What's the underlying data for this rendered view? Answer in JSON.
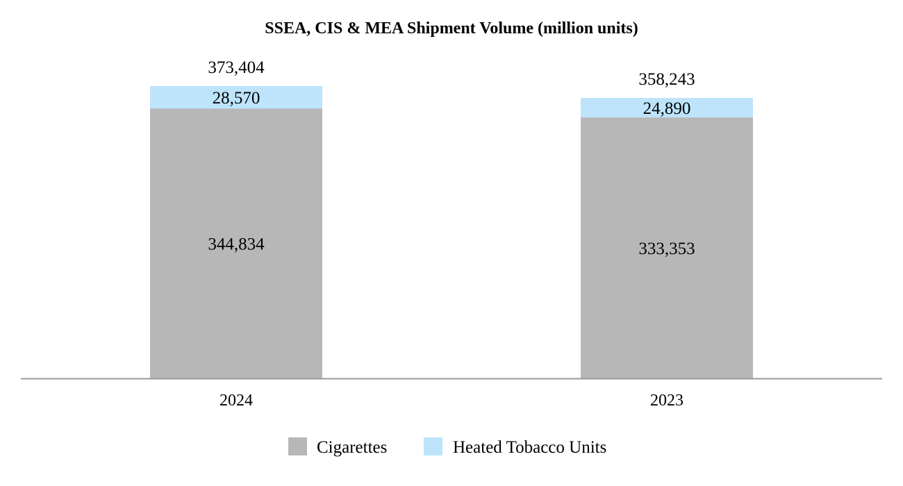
{
  "chart_data": {
    "type": "bar",
    "stacked": true,
    "title": "SSEA, CIS & MEA Shipment Volume (million units)",
    "xlabel": "",
    "ylabel": "",
    "categories": [
      "2024",
      "2023"
    ],
    "series": [
      {
        "name": "Cigarettes",
        "values": [
          344834,
          333353
        ],
        "value_labels": [
          "344,834",
          "333,353"
        ],
        "color": "#b7b7b7"
      },
      {
        "name": "Heated Tobacco Units",
        "values": [
          28570,
          24890
        ],
        "value_labels": [
          "28,570",
          "24,890"
        ],
        "color": "#bde4fb"
      }
    ],
    "totals": [
      373404,
      358243
    ],
    "total_labels": [
      "373,404",
      "358,243"
    ],
    "ylim": [
      0,
      380000
    ],
    "grid": false,
    "legend": "bottom",
    "axis_color": "#999999"
  }
}
